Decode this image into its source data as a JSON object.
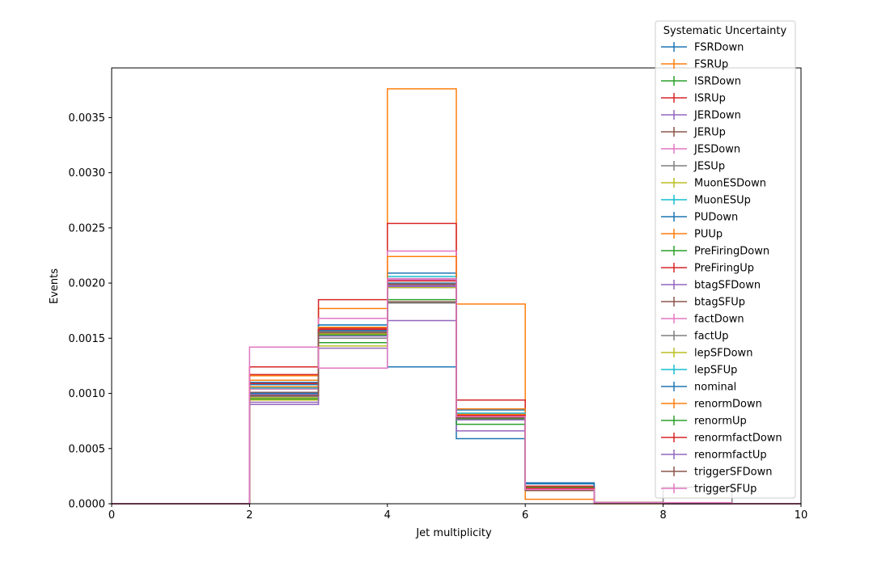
{
  "chart_data": {
    "type": "line",
    "title": "",
    "xlabel": "Jet multiplicity",
    "ylabel": "Events",
    "xlim": [
      0,
      10
    ],
    "ylim": [
      0,
      0.00395
    ],
    "xticks": [
      "0",
      "2",
      "4",
      "6",
      "8",
      "10"
    ],
    "yticks": [
      "0.0000",
      "0.0005",
      "0.0010",
      "0.0015",
      "0.0020",
      "0.0025",
      "0.0030",
      "0.0035"
    ],
    "grid": false,
    "legend": {
      "title": "Systematic Uncertainty",
      "placement": "upper right, extending above the axes"
    },
    "bin_edges": [
      0,
      1,
      2,
      3,
      4,
      5,
      6,
      7,
      8,
      9,
      10
    ],
    "series": [
      {
        "name": "FSRDown",
        "color": "#1f77b4",
        "values": [
          0,
          0,
          0.00108,
          0.0016,
          0.00124,
          0.00059,
          0.00018,
          1e-05,
          0,
          0
        ]
      },
      {
        "name": "FSRUp",
        "color": "#ff7f0e",
        "values": [
          0,
          0,
          0.00116,
          0.00177,
          0.00376,
          0.00181,
          4e-05,
          0,
          0,
          0
        ]
      },
      {
        "name": "ISRDown",
        "color": "#2ca02c",
        "values": [
          0,
          0,
          0.00104,
          0.00146,
          0.00185,
          0.00078,
          0.00015,
          1e-05,
          0,
          0
        ]
      },
      {
        "name": "ISRUp",
        "color": "#d62728",
        "values": [
          0,
          0,
          0.00124,
          0.00185,
          0.00254,
          0.00094,
          0.00016,
          1e-05,
          0,
          0
        ]
      },
      {
        "name": "JERDown",
        "color": "#9467bd",
        "values": [
          0,
          0,
          0.0009,
          0.00141,
          0.00166,
          0.00066,
          0.00012,
          1e-05,
          0,
          0
        ]
      },
      {
        "name": "JERUp",
        "color": "#8c564b",
        "values": [
          0,
          0,
          0.00098,
          0.00155,
          0.00183,
          0.00076,
          0.00013,
          1e-05,
          0,
          0
        ]
      },
      {
        "name": "JESDown",
        "color": "#e377c2",
        "values": [
          0,
          0,
          0.00106,
          0.00168,
          0.00229,
          0.0008,
          0.00014,
          1e-05,
          0,
          0
        ]
      },
      {
        "name": "JESUp",
        "color": "#7f7f7f",
        "values": [
          0,
          0,
          0.001,
          0.0015,
          0.00182,
          0.0008,
          0.00013,
          1e-05,
          0.00015,
          0
        ]
      },
      {
        "name": "MuonESDown",
        "color": "#bcbd22",
        "values": [
          0,
          0,
          0.00094,
          0.00143,
          0.00197,
          0.00078,
          0.00013,
          1e-05,
          0,
          0
        ]
      },
      {
        "name": "MuonESUp",
        "color": "#17becf",
        "values": [
          0,
          0,
          0.00106,
          0.00162,
          0.00206,
          0.00082,
          0.00014,
          1e-05,
          0,
          0
        ]
      },
      {
        "name": "PUDown",
        "color": "#1f77b4",
        "values": [
          0,
          0,
          0.0011,
          0.00162,
          0.00209,
          0.00085,
          0.00019,
          1e-05,
          0,
          0
        ]
      },
      {
        "name": "PUUp",
        "color": "#ff7f0e",
        "values": [
          0,
          0,
          0.00112,
          0.00159,
          0.00224,
          0.00086,
          0.00012,
          1e-05,
          0,
          0
        ]
      },
      {
        "name": "PreFiringDown",
        "color": "#2ca02c",
        "values": [
          0,
          0,
          0.00101,
          0.00157,
          0.00199,
          0.00072,
          0.00013,
          1e-05,
          0,
          0
        ]
      },
      {
        "name": "PreFiringUp",
        "color": "#d62728",
        "values": [
          0,
          0,
          0.00109,
          0.00159,
          0.00202,
          0.00079,
          0.00013,
          1e-05,
          0,
          0
        ]
      },
      {
        "name": "btagSFDown",
        "color": "#9467bd",
        "values": [
          0,
          0,
          0.00099,
          0.00158,
          0.00198,
          0.00082,
          0.00013,
          1e-05,
          0,
          0
        ]
      },
      {
        "name": "btagSFUp",
        "color": "#8c564b",
        "values": [
          0,
          0,
          0.00101,
          0.00156,
          0.00196,
          0.00076,
          0.00012,
          1e-05,
          0,
          0
        ]
      },
      {
        "name": "factDown",
        "color": "#e377c2",
        "values": [
          0,
          0,
          0.00104,
          0.0016,
          0.00203,
          0.00081,
          0.00014,
          1e-05,
          0,
          0
        ]
      },
      {
        "name": "factUp",
        "color": "#7f7f7f",
        "values": [
          0,
          0,
          0.00097,
          0.00156,
          0.00196,
          0.00077,
          0.00013,
          1e-05,
          0,
          0
        ]
      },
      {
        "name": "lepSFDown",
        "color": "#bcbd22",
        "values": [
          0,
          0,
          0.00096,
          0.00154,
          0.00196,
          0.00077,
          0.00013,
          1e-05,
          0,
          0
        ]
      },
      {
        "name": "lepSFUp",
        "color": "#17becf",
        "values": [
          0,
          0,
          0.00105,
          0.0016,
          0.00204,
          0.00082,
          0.00014,
          1e-05,
          0,
          0
        ]
      },
      {
        "name": "nominal",
        "color": "#1f77b4",
        "values": [
          0,
          0,
          0.001,
          0.00157,
          0.002,
          0.00079,
          0.00013,
          1e-05,
          0,
          0
        ]
      },
      {
        "name": "renormDown",
        "color": "#ff7f0e",
        "values": [
          0,
          0,
          0.00106,
          0.0016,
          0.00199,
          0.00081,
          0.00014,
          1e-05,
          0,
          0
        ]
      },
      {
        "name": "renormUp",
        "color": "#2ca02c",
        "values": [
          0,
          0,
          0.00095,
          0.00153,
          0.00197,
          0.00077,
          0.00013,
          1e-05,
          0,
          0
        ]
      },
      {
        "name": "renormfactDown",
        "color": "#d62728",
        "values": [
          0,
          0,
          0.00117,
          0.00158,
          0.00202,
          0.0008,
          0.00014,
          1e-05,
          0,
          0
        ]
      },
      {
        "name": "renormfactUp",
        "color": "#9467bd",
        "values": [
          0,
          0,
          0.00092,
          0.00152,
          0.00197,
          0.00076,
          0.00013,
          1e-05,
          0,
          0
        ]
      },
      {
        "name": "triggerSFDown",
        "color": "#8c564b",
        "values": [
          0,
          0,
          0.00098,
          0.00155,
          0.00199,
          0.00078,
          0.00013,
          1e-05,
          0,
          0
        ]
      },
      {
        "name": "triggerSFUp",
        "color": "#e377c2",
        "values": [
          0,
          0,
          0.00142,
          0.00123,
          0.00204,
          0.00079,
          0.00013,
          1e-05,
          1e-05,
          0
        ]
      }
    ]
  }
}
